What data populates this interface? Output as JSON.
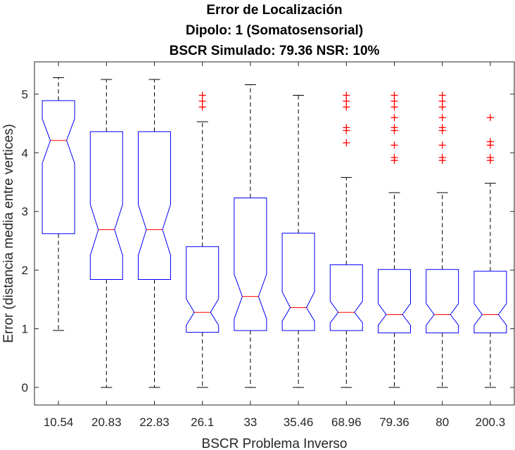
{
  "chart_data": {
    "type": "box",
    "title_lines": [
      "Error de Localización",
      "Dipolo: 1 (Somatosensorial)",
      "BSCR Simulado: 79.36 NSR: 10%"
    ],
    "xlabel": "BSCR Problema Inverso",
    "ylabel": "Error (distancia media entre vertices)",
    "ylim": [
      -0.3,
      5.55
    ],
    "yticks": [
      "0",
      "1",
      "2",
      "3",
      "4",
      "5"
    ],
    "grid": false,
    "notched": true,
    "colors": {
      "box": "#0000ff",
      "median": "#ff0000",
      "whisker": "#000000",
      "outlier": "#ff0000"
    },
    "categories": [
      "10.54",
      "20.83",
      "22.83",
      "26.1",
      "33",
      "35.46",
      "68.96",
      "79.36",
      "80",
      "200.3"
    ],
    "boxes": [
      {
        "whisker_low": 0.97,
        "q1": 2.62,
        "notch_low": 3.82,
        "median": 4.21,
        "notch_high": 4.58,
        "q3": 4.89,
        "whisker_high": 5.28,
        "outliers": []
      },
      {
        "whisker_low": 0.0,
        "q1": 1.84,
        "notch_low": 2.25,
        "median": 2.69,
        "notch_high": 3.12,
        "q3": 4.36,
        "whisker_high": 5.25,
        "outliers": []
      },
      {
        "whisker_low": 0.0,
        "q1": 1.84,
        "notch_low": 2.25,
        "median": 2.69,
        "notch_high": 3.12,
        "q3": 4.36,
        "whisker_high": 5.25,
        "outliers": []
      },
      {
        "whisker_low": 0.0,
        "q1": 0.94,
        "notch_low": 1.06,
        "median": 1.28,
        "notch_high": 1.51,
        "q3": 2.4,
        "whisker_high": 4.53,
        "outliers": [
          4.78,
          4.88,
          4.98
        ]
      },
      {
        "whisker_low": 0.0,
        "q1": 0.97,
        "notch_low": 1.17,
        "median": 1.55,
        "notch_high": 1.93,
        "q3": 3.23,
        "whisker_high": 5.16,
        "outliers": []
      },
      {
        "whisker_low": 0.0,
        "q1": 0.97,
        "notch_low": 1.13,
        "median": 1.36,
        "notch_high": 1.63,
        "q3": 2.63,
        "whisker_high": 4.98,
        "outliers": []
      },
      {
        "whisker_low": 0.0,
        "q1": 0.97,
        "notch_low": 1.1,
        "median": 1.28,
        "notch_high": 1.47,
        "q3": 2.09,
        "whisker_high": 3.58,
        "outliers": [
          4.17,
          4.38,
          4.43,
          4.78,
          4.88,
          4.98
        ]
      },
      {
        "whisker_low": 0.0,
        "q1": 0.93,
        "notch_low": 1.06,
        "median": 1.24,
        "notch_high": 1.43,
        "q3": 2.01,
        "whisker_high": 3.32,
        "outliers": [
          3.87,
          3.92,
          4.13,
          4.38,
          4.43,
          4.6,
          4.78,
          4.88,
          4.98
        ]
      },
      {
        "whisker_low": 0.0,
        "q1": 0.93,
        "notch_low": 1.06,
        "median": 1.24,
        "notch_high": 1.43,
        "q3": 2.01,
        "whisker_high": 3.32,
        "outliers": [
          3.87,
          3.92,
          4.13,
          4.38,
          4.43,
          4.6,
          4.78,
          4.88,
          4.98
        ]
      },
      {
        "whisker_low": 0.0,
        "q1": 0.93,
        "notch_low": 1.06,
        "median": 1.24,
        "notch_high": 1.43,
        "q3": 1.98,
        "whisker_high": 3.48,
        "outliers": [
          3.87,
          3.92,
          4.13,
          4.19,
          4.6
        ]
      }
    ]
  }
}
